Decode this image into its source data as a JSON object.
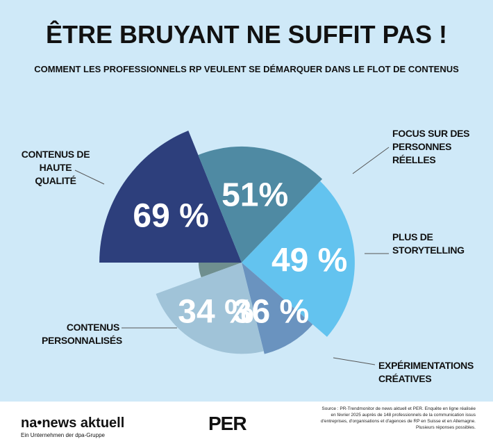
{
  "chart_data": {
    "type": "polar",
    "title": "ÊTRE BRUYANT NE SUFFIT PAS !",
    "subtitle": "COMMENT LES PROFESSIONNELS RP VEULENT SE DÉMARQUER DANS LE FLOT DE CONTENUS",
    "categories": [
      "CONTENUS DE HAUTE QUALITÉ",
      "FOCUS SUR DES PERSONNES RÉELLES",
      "PLUS DE STORYTELLING",
      "EXPÉRIMENTATIONS CRÉATIVES",
      "CONTENUS PERSONNALISÉS"
    ],
    "values": [
      69,
      51,
      49,
      36,
      34
    ],
    "value_labels": [
      "69 %",
      "51%",
      "49 %",
      "36 %",
      "34 %"
    ],
    "colors": [
      "#2d3f7c",
      "#4f8aa3",
      "#63c3ef",
      "#6a93bf",
      "#a0c3d8"
    ]
  },
  "footer": {
    "logo": "na•news aktuell",
    "logo_tagline": "Ein Unternehmen der dpa-Gruppe",
    "partner": "PER",
    "source": "Source : PR-Trendmonitor de news aktuell et PER. Enquête en ligne réalisée en février 2025 auprès de 148 professionnels de la communication issus d'entreprises, d'organisations et d'agences de RP en Suisse et en Allemagne. Plusieurs réponses possibles."
  }
}
